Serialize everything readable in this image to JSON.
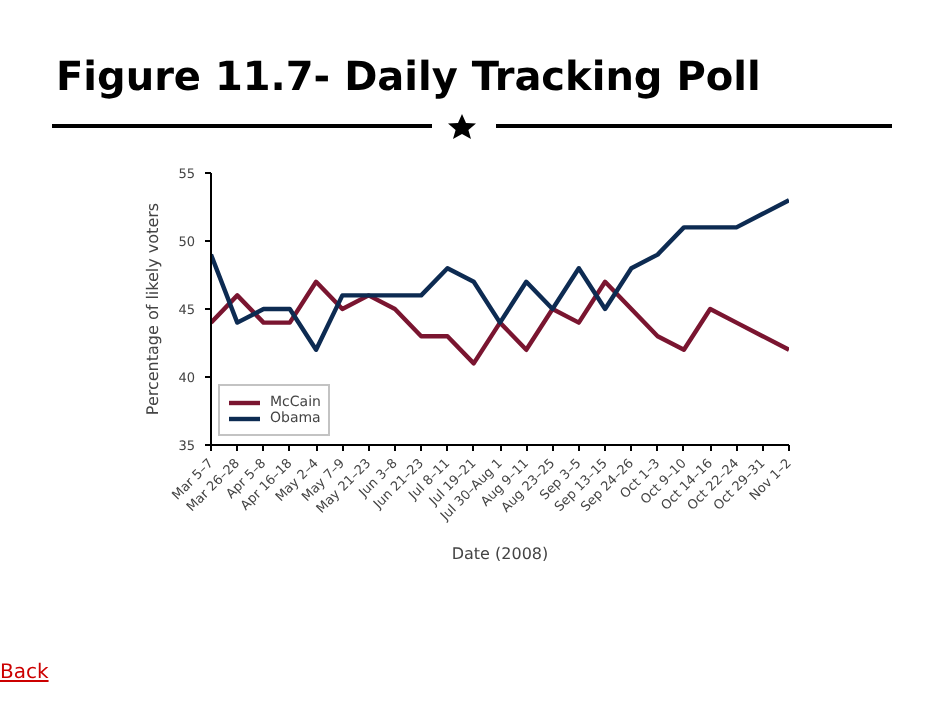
{
  "chart_data": {
    "type": "line",
    "title": "Figure 11.7- Daily Tracking Poll",
    "xlabel": "Date (2008)",
    "ylabel": "Percentage of likely voters",
    "categories": [
      "Mar 5–7",
      "Mar 26–28",
      "Apr 5–8",
      "Apr 16–18",
      "May 2–4",
      "May 7–9",
      "May 21–23",
      "Jun 3–8",
      "Jun 21–23",
      "Jul 8–11",
      "Jul 19–21",
      "Jul 30–Aug 1",
      "Aug 9–11",
      "Aug 23–25",
      "Sep 3–5",
      "Sep 13–15",
      "Sep 24–26",
      "Oct 1–3",
      "Oct 9–10",
      "Oct 14–16",
      "Oct 22–24",
      "Oct 29–31",
      "Nov 1–2"
    ],
    "series": [
      {
        "name": "McCain",
        "color": "#7a1530",
        "values": [
          44,
          46,
          44,
          44,
          47,
          45,
          46,
          45,
          43,
          43,
          41,
          44,
          42,
          45,
          44,
          47,
          45,
          43,
          42,
          45,
          44,
          43,
          42
        ]
      },
      {
        "name": "Obama",
        "color": "#0d2b52",
        "values": [
          49,
          44,
          45,
          45,
          42,
          46,
          46,
          46,
          46,
          48,
          47,
          44,
          47,
          45,
          48,
          45,
          48,
          49,
          51,
          51,
          51,
          52,
          53
        ]
      }
    ],
    "ylim": [
      35,
      55
    ],
    "yticks": [
      35,
      40,
      45,
      50,
      55
    ],
    "grid": false,
    "legend": "bottom left",
    "marker": "none",
    "line_style": "solid",
    "annotations": [
      "Back"
    ]
  }
}
